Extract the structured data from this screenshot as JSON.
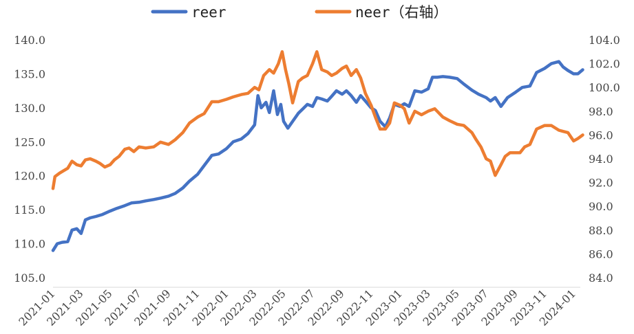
{
  "chart_data": {
    "type": "line",
    "title": "",
    "legend": {
      "placement": "top-center"
    },
    "grid": false,
    "x_ticks": [
      "2021-01",
      "2021-03",
      "2021-05",
      "2021-07",
      "2021-09",
      "2021-11",
      "2022-01",
      "2022-03",
      "2022-05",
      "2022-07",
      "2022-09",
      "2022-11",
      "2023-01",
      "2023-03",
      "2023-05",
      "2023-07",
      "2023-09",
      "2023-11",
      "2024-01"
    ],
    "y_left": {
      "ticks": [
        "105.0",
        "110.0",
        "115.0",
        "120.0",
        "125.0",
        "130.0",
        "135.0",
        "140.0"
      ],
      "min": 105,
      "max": 140
    },
    "y_right": {
      "ticks": [
        "84.0",
        "86.0",
        "88.0",
        "90.0",
        "92.0",
        "94.0",
        "96.0",
        "98.0",
        "100.0",
        "102.0",
        "104.0"
      ],
      "min": 84,
      "max": 104
    },
    "series": [
      {
        "name": "reer",
        "axis": "left",
        "color": "#4472C4",
        "x": [
          "2021-01-01",
          "2021-01-10",
          "2021-01-20",
          "2021-02-01",
          "2021-02-10",
          "2021-02-20",
          "2021-03-01",
          "2021-03-10",
          "2021-03-20",
          "2021-04-01",
          "2021-04-15",
          "2021-05-01",
          "2021-05-15",
          "2021-06-01",
          "2021-06-15",
          "2021-07-01",
          "2021-07-15",
          "2021-08-01",
          "2021-08-15",
          "2021-09-01",
          "2021-09-15",
          "2021-10-01",
          "2021-10-15",
          "2021-11-01",
          "2021-11-15",
          "2021-12-01",
          "2021-12-15",
          "2022-01-01",
          "2022-01-15",
          "2022-02-01",
          "2022-02-15",
          "2022-03-01",
          "2022-03-08",
          "2022-03-15",
          "2022-03-25",
          "2022-04-01",
          "2022-04-10",
          "2022-04-18",
          "2022-04-25",
          "2022-05-01",
          "2022-05-10",
          "2022-05-20",
          "2022-06-01",
          "2022-06-10",
          "2022-06-20",
          "2022-07-01",
          "2022-07-10",
          "2022-07-20",
          "2022-08-01",
          "2022-08-10",
          "2022-08-20",
          "2022-09-01",
          "2022-09-10",
          "2022-09-20",
          "2022-10-01",
          "2022-10-10",
          "2022-10-20",
          "2022-11-01",
          "2022-11-10",
          "2022-11-20",
          "2022-12-01",
          "2022-12-10",
          "2022-12-20",
          "2023-01-01",
          "2023-01-10",
          "2023-01-20",
          "2023-02-01",
          "2023-02-15",
          "2023-03-01",
          "2023-03-10",
          "2023-03-20",
          "2023-04-01",
          "2023-04-15",
          "2023-05-01",
          "2023-05-15",
          "2023-06-01",
          "2023-06-15",
          "2023-07-01",
          "2023-07-10",
          "2023-07-20",
          "2023-08-01",
          "2023-08-15",
          "2023-09-01",
          "2023-09-15",
          "2023-10-01",
          "2023-10-15",
          "2023-11-01",
          "2023-11-15",
          "2023-12-01",
          "2023-12-10",
          "2023-12-20",
          "2024-01-01",
          "2024-01-10",
          "2024-01-20"
        ],
        "values": [
          109.0,
          110.0,
          110.2,
          110.3,
          112.0,
          112.2,
          111.5,
          113.5,
          113.8,
          114.0,
          114.3,
          114.8,
          115.2,
          115.6,
          116.0,
          116.1,
          116.3,
          116.5,
          116.7,
          117.0,
          117.4,
          118.2,
          119.2,
          120.2,
          121.5,
          123.0,
          123.2,
          124.0,
          125.0,
          125.4,
          126.2,
          127.5,
          131.8,
          130.0,
          130.8,
          129.3,
          132.5,
          129.0,
          130.5,
          128.0,
          127.0,
          128.0,
          129.2,
          129.8,
          130.5,
          130.2,
          131.5,
          131.3,
          131.0,
          131.7,
          132.5,
          132.0,
          132.5,
          131.8,
          130.8,
          131.8,
          131.0,
          130.0,
          129.6,
          128.0,
          127.2,
          128.5,
          130.5,
          130.2,
          130.6,
          130.2,
          132.5,
          132.3,
          132.8,
          134.5,
          134.5,
          134.6,
          134.5,
          134.3,
          133.5,
          132.6,
          132.0,
          131.5,
          131.0,
          131.5,
          130.2,
          131.5,
          132.3,
          133.0,
          133.2,
          135.2,
          135.8,
          136.5,
          136.8,
          136.0,
          135.5,
          135.0,
          135.0,
          135.6
        ]
      },
      {
        "name": "neer（右轴）",
        "axis": "right",
        "color": "#ED7D31",
        "x": [
          "2021-01-01",
          "2021-01-05",
          "2021-01-15",
          "2021-02-01",
          "2021-02-10",
          "2021-02-20",
          "2021-03-01",
          "2021-03-10",
          "2021-03-20",
          "2021-04-01",
          "2021-04-10",
          "2021-04-20",
          "2021-05-01",
          "2021-05-10",
          "2021-05-20",
          "2021-06-01",
          "2021-06-10",
          "2021-06-20",
          "2021-07-01",
          "2021-07-15",
          "2021-08-01",
          "2021-08-15",
          "2021-09-01",
          "2021-09-15",
          "2021-10-01",
          "2021-10-15",
          "2021-11-01",
          "2021-11-15",
          "2021-12-01",
          "2021-12-15",
          "2022-01-01",
          "2022-01-15",
          "2022-02-01",
          "2022-02-15",
          "2022-03-01",
          "2022-03-10",
          "2022-03-20",
          "2022-04-01",
          "2022-04-10",
          "2022-04-20",
          "2022-04-28",
          "2022-05-05",
          "2022-05-12",
          "2022-05-20",
          "2022-06-01",
          "2022-06-10",
          "2022-06-20",
          "2022-07-01",
          "2022-07-10",
          "2022-07-20",
          "2022-08-01",
          "2022-08-10",
          "2022-08-20",
          "2022-09-01",
          "2022-09-10",
          "2022-09-20",
          "2022-10-01",
          "2022-10-10",
          "2022-10-20",
          "2022-11-01",
          "2022-11-10",
          "2022-11-20",
          "2022-12-01",
          "2022-12-10",
          "2022-12-20",
          "2023-01-01",
          "2023-01-10",
          "2023-01-20",
          "2023-02-01",
          "2023-02-15",
          "2023-03-01",
          "2023-03-15",
          "2023-04-01",
          "2023-04-15",
          "2023-05-01",
          "2023-05-15",
          "2023-06-01",
          "2023-06-10",
          "2023-06-20",
          "2023-07-01",
          "2023-07-10",
          "2023-07-20",
          "2023-08-01",
          "2023-08-10",
          "2023-08-20",
          "2023-09-01",
          "2023-09-10",
          "2023-09-20",
          "2023-10-01",
          "2023-10-15",
          "2023-11-01",
          "2023-11-15",
          "2023-12-01",
          "2023-12-10",
          "2023-12-20",
          "2024-01-01",
          "2024-01-10",
          "2024-01-20"
        ],
        "values": [
          91.5,
          92.5,
          92.8,
          93.2,
          93.8,
          93.5,
          93.4,
          93.9,
          94.0,
          93.8,
          93.6,
          93.3,
          93.5,
          93.9,
          94.2,
          94.8,
          94.9,
          94.6,
          95.0,
          94.9,
          95.0,
          95.4,
          95.2,
          95.6,
          96.2,
          97.0,
          97.5,
          97.8,
          98.8,
          98.8,
          99.0,
          99.2,
          99.4,
          99.5,
          100.0,
          99.8,
          101.0,
          101.5,
          101.2,
          102.0,
          103.0,
          101.5,
          100.3,
          98.7,
          100.5,
          100.8,
          101.0,
          102.0,
          103.0,
          101.5,
          101.3,
          101.0,
          101.2,
          101.6,
          101.8,
          101.0,
          101.5,
          100.8,
          99.5,
          98.5,
          97.5,
          96.5,
          96.5,
          97.0,
          98.7,
          98.5,
          98.2,
          97.0,
          98.0,
          97.7,
          98.0,
          98.2,
          97.5,
          97.2,
          96.9,
          96.8,
          96.2,
          95.6,
          95.0,
          94.0,
          93.8,
          92.6,
          93.5,
          94.2,
          94.5,
          94.5,
          94.5,
          95.0,
          95.2,
          96.5,
          96.8,
          96.8,
          96.4,
          96.3,
          96.2,
          95.5,
          95.7,
          96.0
        ]
      }
    ]
  }
}
